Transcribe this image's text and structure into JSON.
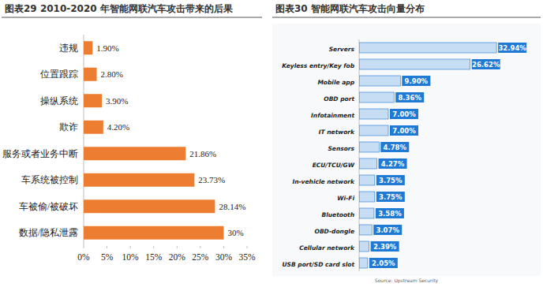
{
  "chart_data": [
    {
      "type": "bar",
      "title": "图表29 2010-2020 年智能网联汽车攻击带来的后果",
      "orientation": "horizontal",
      "categories": [
        "违规",
        "位置跟踪",
        "操纵系统",
        "欺诈",
        "服务或者业务中断",
        "车系统被控制",
        "车被偷/被破坏",
        "数据/隐私泄露"
      ],
      "values": [
        1.9,
        2.8,
        3.9,
        4.2,
        21.86,
        23.73,
        28.14,
        30
      ],
      "value_labels": [
        "1.90%",
        "2.80%",
        "3.90%",
        "4.20%",
        "21.86%",
        "23.73%",
        "28.14%",
        "30%"
      ],
      "color": "#ed7d31",
      "data_labels": true,
      "grid": false,
      "xlim": [
        0,
        35
      ],
      "xticks": [
        {
          "value": 0,
          "label": "0%"
        },
        {
          "value": 5,
          "label": "5%"
        },
        {
          "value": 10,
          "label": "10%"
        },
        {
          "value": 15,
          "label": "15%"
        },
        {
          "value": 20,
          "label": "20%"
        },
        {
          "value": 25,
          "label": "25%"
        },
        {
          "value": 30,
          "label": "30%"
        },
        {
          "value": 35,
          "label": "35%"
        }
      ]
    },
    {
      "type": "bar",
      "title": "图表30 智能网联汽车攻击向量分布",
      "orientation": "horizontal",
      "categories": [
        "Servers",
        "Keyless entry/Key fob",
        "Mobile app",
        "OBD port",
        "Infotainment",
        "IT network",
        "Sensors",
        "ECU/TCU/GW",
        "In-vehicle network",
        "Wi-Fi",
        "Bluetooth",
        "OBD-dongle",
        "Cellular network",
        "USB port/SD card slot"
      ],
      "values": [
        32.94,
        26.62,
        9.9,
        8.36,
        7.0,
        7.0,
        4.78,
        4.27,
        3.75,
        3.75,
        3.58,
        3.07,
        2.39,
        2.05
      ],
      "value_labels": [
        "32.94%",
        "26.62%",
        "9.90%",
        "8.36%",
        "7.00%",
        "7.00%",
        "4.78%",
        "4.27%",
        "3.75%",
        "3.75%",
        "3.58%",
        "3.07%",
        "2.39%",
        "2.05%"
      ],
      "color": "#1f7ad6",
      "data_labels": true,
      "grid": false,
      "tick_labels": false,
      "xlim": [
        0,
        35
      ],
      "source": "Source: Upstream Security"
    }
  ]
}
